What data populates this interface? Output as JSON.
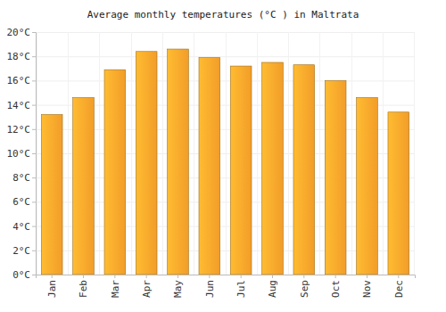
{
  "chart_data": {
    "type": "bar",
    "title": "Average monthly temperatures (°C ) in Maltrata",
    "categories": [
      "Jan",
      "Feb",
      "Mar",
      "Apr",
      "May",
      "Jun",
      "Jul",
      "Aug",
      "Sep",
      "Oct",
      "Nov",
      "Dec"
    ],
    "values": [
      13.2,
      14.6,
      16.9,
      18.4,
      18.6,
      17.9,
      17.2,
      17.5,
      17.3,
      16.0,
      14.6,
      13.4
    ],
    "color": "#ffa62b",
    "ylim": [
      0,
      20
    ],
    "yticks": [
      {
        "value": 0,
        "label": "0°C"
      },
      {
        "value": 2,
        "label": "2°C"
      },
      {
        "value": 4,
        "label": "4°C"
      },
      {
        "value": 6,
        "label": "6°C"
      },
      {
        "value": 8,
        "label": "8°C"
      },
      {
        "value": 10,
        "label": "10°C"
      },
      {
        "value": 12,
        "label": "12°C"
      },
      {
        "value": 14,
        "label": "14°C"
      },
      {
        "value": 16,
        "label": "16°C"
      },
      {
        "value": 18,
        "label": "18°C"
      },
      {
        "value": 20,
        "label": "20°C"
      }
    ],
    "grid": true
  }
}
